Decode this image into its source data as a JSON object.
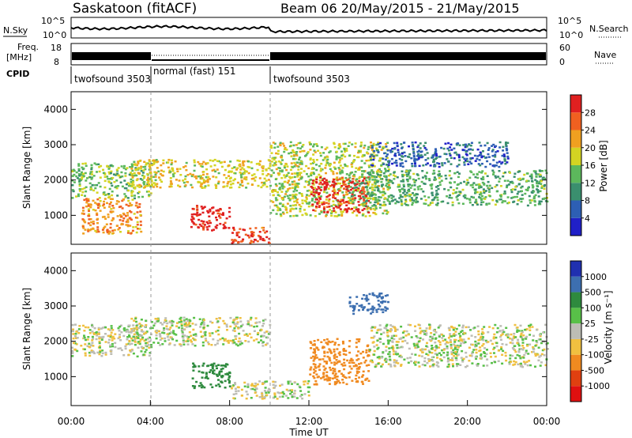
{
  "header": {
    "title": "Saskatoon (fitACF)",
    "beam_date": "Beam 06  20/May/2015 - 21/May/2015"
  },
  "top_panels": {
    "nsky_label": "N.Sky",
    "nsearch_label": "N.Search",
    "noise_ticks_left": [
      "10^5",
      "10^0"
    ],
    "noise_ticks_right": [
      "10^5",
      "10^0"
    ],
    "freq_label_1": "Freq.",
    "freq_label_2": "[MHz]",
    "freq_ticks": [
      "18",
      "8"
    ],
    "nave_label": "Nave",
    "nave_ticks": [
      "60",
      "0"
    ],
    "cpid_label": "CPID",
    "cpid_segments": [
      {
        "label": "twofsound 3503",
        "start_h": 0,
        "end_h": 4
      },
      {
        "label": "normal (fast) 151",
        "start_h": 4,
        "end_h": 10
      },
      {
        "label": "twofsound 3503",
        "start_h": 10,
        "end_h": 24
      }
    ]
  },
  "axes": {
    "x_label": "Time UT",
    "x_ticks": [
      "00:00",
      "04:00",
      "08:00",
      "12:00",
      "16:00",
      "20:00",
      "00:00"
    ],
    "y_label": "Slant Range [km]",
    "y_ticks": [
      "4000",
      "3000",
      "2000",
      "1000"
    ]
  },
  "colorbars": {
    "power": {
      "label": "Power [dB]",
      "ticks": [
        "28",
        "24",
        "20",
        "16",
        "12",
        "8",
        "4"
      ],
      "colors": [
        "#2020c8",
        "#2d5fb4",
        "#3a8f6e",
        "#5cb85c",
        "#d4d422",
        "#f0a020",
        "#f06020",
        "#e02020"
      ]
    },
    "velocity": {
      "label": "Velocity [m s⁻¹]",
      "ticks": [
        "1000",
        "500",
        "100",
        "25",
        "-25",
        "-100",
        "-500",
        "-1000"
      ],
      "colors": [
        "#2030b0",
        "#3d6fb0",
        "#2e8a3e",
        "#58c048",
        "#bdbdb5",
        "#f0c040",
        "#f08a20",
        "#e04010",
        "#e01010"
      ]
    }
  },
  "chart_data": [
    {
      "type": "heatmap",
      "title": "Power",
      "xlabel": "Time UT",
      "ylabel": "Slant Range [km]",
      "xlim": [
        0,
        24
      ],
      "ylim": [
        180,
        4500
      ],
      "colorbar": {
        "label": "Power [dB]",
        "range": [
          0,
          30
        ]
      },
      "regions": [
        {
          "t0": 0,
          "t1": 4,
          "r0": 1500,
          "r1": 2500,
          "value": 14
        },
        {
          "t0": 0.5,
          "t1": 3.5,
          "r0": 500,
          "r1": 1500,
          "value": 22
        },
        {
          "t0": 3,
          "t1": 10,
          "r0": 1800,
          "r1": 2600,
          "value": 18
        },
        {
          "t0": 6,
          "t1": 8,
          "r0": 600,
          "r1": 1300,
          "value": 28
        },
        {
          "t0": 8,
          "t1": 10,
          "r0": 200,
          "r1": 700,
          "value": 26
        },
        {
          "t0": 10,
          "t1": 16,
          "r0": 1000,
          "r1": 3100,
          "value": 16
        },
        {
          "t0": 12,
          "t1": 15,
          "r0": 1100,
          "r1": 2100,
          "value": 28
        },
        {
          "t0": 14,
          "t1": 24,
          "r0": 1300,
          "r1": 2300,
          "value": 12
        },
        {
          "t0": 15,
          "t1": 22,
          "r0": 2400,
          "r1": 3100,
          "value": 6
        }
      ]
    },
    {
      "type": "heatmap",
      "title": "Velocity",
      "xlabel": "Time UT",
      "ylabel": "Slant Range [km]",
      "xlim": [
        0,
        24
      ],
      "ylim": [
        180,
        4500
      ],
      "colorbar": {
        "label": "Velocity [m s⁻¹]",
        "range": [
          -1000,
          1000
        ]
      },
      "regions": [
        {
          "t0": 0,
          "t1": 4,
          "r0": 1600,
          "r1": 2500,
          "value": 0
        },
        {
          "t0": 3,
          "t1": 10,
          "r0": 1900,
          "r1": 2700,
          "value": 0
        },
        {
          "t0": 6,
          "t1": 8,
          "r0": 700,
          "r1": 1400,
          "value": 200
        },
        {
          "t0": 8,
          "t1": 12,
          "r0": 400,
          "r1": 900,
          "value": 0
        },
        {
          "t0": 12,
          "t1": 15,
          "r0": 800,
          "r1": 2100,
          "value": -300
        },
        {
          "t0": 14,
          "t1": 16,
          "r0": 2800,
          "r1": 3400,
          "value": 600
        },
        {
          "t0": 15,
          "t1": 24,
          "r0": 1300,
          "r1": 2500,
          "value": 0
        }
      ]
    }
  ]
}
